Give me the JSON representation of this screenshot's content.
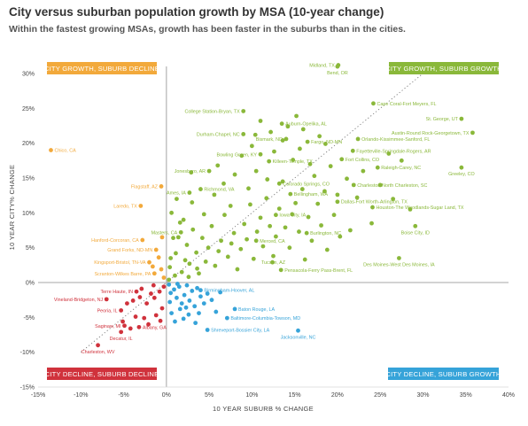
{
  "title": "City versus suburban population growth by MSA (10-year change)",
  "subtitle": "Within the fastest growing MSAs, growth has been faster in the suburbs than in the cities.",
  "colors": {
    "growth_growth": "#8ab83a",
    "growth_decline": "#f2a93b",
    "decline_decline": "#d0323c",
    "decline_growth": "#36a3d9",
    "axis": "#b9b9b9",
    "diagonal": "#777777"
  },
  "chart_data": {
    "type": "scatter",
    "xlabel": "10 YEAR SUBURB % CHANGE",
    "ylabel": "10 YEAR CITY% CHANGE",
    "xlim": [
      -15,
      40
    ],
    "ylim": [
      -15,
      30
    ],
    "x_ticks": [
      "-15%",
      "-10%",
      "-5%",
      "0%",
      "5%",
      "10%",
      "15%",
      "20%",
      "25%",
      "30%",
      "35%",
      "40%"
    ],
    "y_ticks": [
      "30%",
      "25%",
      "20%",
      "15%",
      "10%",
      "5%",
      "0%",
      "-5%",
      "-10%",
      "-15%"
    ],
    "grid": false,
    "diagonal_reference_line": true,
    "quadrant_labels": [
      {
        "text": "CITY GROWTH, SUBURB DECLINE",
        "category": "growth_decline"
      },
      {
        "text": "CITY GROWTH, SUBURB GROWTH",
        "category": "growth_growth"
      },
      {
        "text": "CITY DECLINE, SUBURB DECLINE",
        "category": "decline_decline"
      },
      {
        "text": "CITY DECLINE, SUBURB GROWTH",
        "category": "decline_growth"
      }
    ],
    "labeled_points": [
      {
        "name": "Midland, TX",
        "x": 20.1,
        "y": 31.2,
        "category": "growth_growth",
        "anchor": "left"
      },
      {
        "name": "Bend, OR",
        "x": 20.0,
        "y": 31.0,
        "category": "growth_growth",
        "anchor": "below"
      },
      {
        "name": "Cape Coral-Fort Meyers, FL",
        "x": 24.2,
        "y": 25.7,
        "category": "growth_growth",
        "anchor": "right"
      },
      {
        "name": "College Station-Bryan, TX",
        "x": 9.0,
        "y": 24.6,
        "category": "growth_growth",
        "anchor": "left"
      },
      {
        "name": "St. George, UT",
        "x": 34.5,
        "y": 23.5,
        "category": "growth_growth",
        "anchor": "left"
      },
      {
        "name": "Auburn-Opelika, AL",
        "x": 13.5,
        "y": 22.8,
        "category": "growth_growth",
        "anchor": "right"
      },
      {
        "name": "Austin-Round Rock-Georgetown, TX",
        "x": 35.8,
        "y": 21.5,
        "category": "growth_growth",
        "anchor": "left"
      },
      {
        "name": "Durham-Chapel, NC",
        "x": 9.0,
        "y": 21.3,
        "category": "growth_growth",
        "anchor": "left"
      },
      {
        "name": "Bismark, ND",
        "x": 14.0,
        "y": 20.6,
        "category": "growth_growth",
        "anchor": "left"
      },
      {
        "name": "Fargo, ND-MN",
        "x": 16.5,
        "y": 20.2,
        "category": "growth_growth",
        "anchor": "right"
      },
      {
        "name": "Orlando-Kissimmee-Sanford, FL",
        "x": 22.4,
        "y": 20.6,
        "category": "growth_growth",
        "anchor": "right"
      },
      {
        "name": "Fayetteville-Springdale-Rogers, AR",
        "x": 21.8,
        "y": 18.9,
        "category": "growth_growth",
        "anchor": "right"
      },
      {
        "name": "Bowling Green, KY",
        "x": 11.0,
        "y": 18.4,
        "category": "growth_growth",
        "anchor": "left"
      },
      {
        "name": "Killeen-Temple, TX",
        "x": 12.0,
        "y": 17.4,
        "category": "growth_growth",
        "anchor": "right"
      },
      {
        "name": "Fort Collins, CO",
        "x": 20.5,
        "y": 17.7,
        "category": "growth_growth",
        "anchor": "right"
      },
      {
        "name": "Chico, CA",
        "x": -13.5,
        "y": 19.0,
        "category": "growth_decline",
        "anchor": "right"
      },
      {
        "name": "Raleigh-Carey, NC",
        "x": 24.7,
        "y": 16.5,
        "category": "growth_growth",
        "anchor": "right"
      },
      {
        "name": "Greeley, CO",
        "x": 34.5,
        "y": 16.5,
        "category": "growth_growth",
        "anchor": "below"
      },
      {
        "name": "Jonesboro, AR",
        "x": 5.0,
        "y": 16.0,
        "category": "growth_growth",
        "anchor": "left"
      },
      {
        "name": "Colorado Springs, CO",
        "x": 13.2,
        "y": 14.2,
        "category": "growth_growth",
        "anchor": "right"
      },
      {
        "name": "Charleston-North Charleston, SC",
        "x": 21.9,
        "y": 14.0,
        "category": "growth_growth",
        "anchor": "right"
      },
      {
        "name": "Flagstaff, AZ",
        "x": -0.6,
        "y": 13.8,
        "category": "growth_decline",
        "anchor": "left"
      },
      {
        "name": "Richmond, VA",
        "x": 4.0,
        "y": 13.4,
        "category": "growth_growth",
        "anchor": "right"
      },
      {
        "name": "Ames, IA",
        "x": 2.7,
        "y": 12.9,
        "category": "growth_growth",
        "anchor": "left"
      },
      {
        "name": "Bellingham, WA",
        "x": 14.5,
        "y": 12.7,
        "category": "growth_growth",
        "anchor": "right"
      },
      {
        "name": "Dallas-Fort Worth-Arlington, TX",
        "x": 20.0,
        "y": 11.6,
        "category": "growth_growth",
        "anchor": "right"
      },
      {
        "name": "Laredo, TX",
        "x": -3.0,
        "y": 11.0,
        "category": "growth_decline",
        "anchor": "left"
      },
      {
        "name": "Houston-The Woodlands-Sugar Land, TX",
        "x": 24.1,
        "y": 10.8,
        "category": "growth_growth",
        "anchor": "right"
      },
      {
        "name": "Iowa City, IA",
        "x": 12.8,
        "y": 9.7,
        "category": "growth_growth",
        "anchor": "right"
      },
      {
        "name": "Boise City, ID",
        "x": 29.1,
        "y": 8.1,
        "category": "growth_growth",
        "anchor": "below"
      },
      {
        "name": "Masters, CA",
        "x": 1.7,
        "y": 7.2,
        "category": "growth_growth",
        "anchor": "left"
      },
      {
        "name": "Burlington, NC",
        "x": 16.4,
        "y": 7.1,
        "category": "growth_growth",
        "anchor": "right"
      },
      {
        "name": "Hanford-Corcoran, CA",
        "x": -2.8,
        "y": 6.1,
        "category": "growth_decline",
        "anchor": "left"
      },
      {
        "name": "Merced, CA",
        "x": 10.5,
        "y": 6.0,
        "category": "growth_growth",
        "anchor": "right"
      },
      {
        "name": "Grand Forks, ND-MN",
        "x": -1.2,
        "y": 4.7,
        "category": "growth_decline",
        "anchor": "left"
      },
      {
        "name": "Des Moines-West Des Moines, IA",
        "x": 27.2,
        "y": 3.5,
        "category": "growth_growth",
        "anchor": "below"
      },
      {
        "name": "Tucson, AZ",
        "x": 12.5,
        "y": 3.8,
        "category": "growth_growth",
        "anchor": "below"
      },
      {
        "name": "Kingsport-Bristol, TN-VA",
        "x": -2.0,
        "y": 2.9,
        "category": "growth_decline",
        "anchor": "left"
      },
      {
        "name": "Scranton-Wilkes Barre, PA",
        "x": -1.4,
        "y": 1.3,
        "category": "growth_decline",
        "anchor": "left"
      },
      {
        "name": "Pensacola-Ferry Pass-Brent, FL",
        "x": 13.4,
        "y": 1.8,
        "category": "growth_growth",
        "anchor": "right"
      },
      {
        "name": "Birmingham-Hoover, AL",
        "x": 4.0,
        "y": -1.1,
        "category": "decline_growth",
        "anchor": "right"
      },
      {
        "name": "Terre Haute, IN",
        "x": -3.5,
        "y": -1.3,
        "category": "decline_decline",
        "anchor": "left"
      },
      {
        "name": "Vineland-Bridgeton, NJ",
        "x": -7.0,
        "y": -2.4,
        "category": "decline_decline",
        "anchor": "left"
      },
      {
        "name": "Peoria, IL",
        "x": -5.3,
        "y": -4.0,
        "category": "decline_decline",
        "anchor": "left"
      },
      {
        "name": "Baton Rouge, LA",
        "x": 8.0,
        "y": -3.8,
        "category": "decline_growth",
        "anchor": "right"
      },
      {
        "name": "Baltimore-Columbia-Towson, MD",
        "x": 7.1,
        "y": -5.1,
        "category": "decline_growth",
        "anchor": "right"
      },
      {
        "name": "Saginaw, MI",
        "x": -4.9,
        "y": -6.2,
        "category": "decline_decline",
        "anchor": "left"
      },
      {
        "name": "Albany, GA",
        "x": -3.2,
        "y": -6.4,
        "category": "decline_decline",
        "anchor": "right"
      },
      {
        "name": "Shreveport-Bossier City, LA",
        "x": 4.8,
        "y": -6.8,
        "category": "decline_growth",
        "anchor": "right"
      },
      {
        "name": "Jacksonville, NC",
        "x": 15.4,
        "y": -6.9,
        "category": "decline_growth",
        "anchor": "below"
      },
      {
        "name": "Decatur, IL",
        "x": -5.3,
        "y": -7.1,
        "category": "decline_decline",
        "anchor": "below"
      },
      {
        "name": "Charleston, WV",
        "x": -8.0,
        "y": -9.0,
        "category": "decline_decline",
        "anchor": "below"
      }
    ],
    "unlabeled_points": {
      "growth_growth": [
        [
          0.5,
          3.5
        ],
        [
          0.3,
          0.4
        ],
        [
          1.1,
          4.2
        ],
        [
          1.4,
          6.5
        ],
        [
          1.8,
          1.5
        ],
        [
          2.2,
          3.2
        ],
        [
          2.4,
          5.4
        ],
        [
          2.7,
          2.7
        ],
        [
          3.1,
          7.6
        ],
        [
          3.5,
          4.3
        ],
        [
          3.8,
          1.3
        ],
        [
          4.2,
          6.4
        ],
        [
          4.6,
          3.0
        ],
        [
          4.9,
          5.0
        ],
        [
          5.3,
          8.1
        ],
        [
          5.7,
          2.4
        ],
        [
          6.1,
          4.5
        ],
        [
          6.4,
          6.0
        ],
        [
          6.8,
          9.7
        ],
        [
          7.2,
          3.7
        ],
        [
          7.6,
          5.6
        ],
        [
          7.9,
          7.1
        ],
        [
          8.3,
          1.9
        ],
        [
          8.7,
          4.8
        ],
        [
          9.1,
          8.4
        ],
        [
          9.4,
          6.2
        ],
        [
          9.8,
          11.2
        ],
        [
          10.2,
          3.4
        ],
        [
          10.6,
          7.3
        ],
        [
          11.0,
          9.3
        ],
        [
          11.3,
          5.2
        ],
        [
          11.7,
          12.1
        ],
        [
          12.1,
          8.1
        ],
        [
          12.4,
          2.9
        ],
        [
          12.8,
          6.6
        ],
        [
          13.2,
          10.6
        ],
        [
          13.6,
          14.5
        ],
        [
          13.9,
          7.9
        ],
        [
          14.4,
          5.0
        ],
        [
          14.7,
          9.8
        ],
        [
          15.1,
          11.4
        ],
        [
          15.5,
          7.3
        ],
        [
          15.9,
          13.4
        ],
        [
          16.2,
          3.3
        ],
        [
          16.6,
          9.4
        ],
        [
          17.0,
          6.0
        ],
        [
          17.3,
          15.3
        ],
        [
          17.7,
          11.3
        ],
        [
          18.1,
          8.2
        ],
        [
          18.5,
          13.1
        ],
        [
          18.8,
          4.7
        ],
        [
          19.2,
          16.7
        ],
        [
          19.6,
          9.7
        ],
        [
          20.0,
          12.6
        ],
        [
          20.3,
          6.6
        ],
        [
          21.1,
          14.9
        ],
        [
          21.5,
          7.5
        ],
        [
          22.3,
          12.2
        ],
        [
          23.0,
          16.0
        ],
        [
          24.0,
          8.5
        ],
        [
          25.0,
          14.0
        ],
        [
          26.5,
          12.0
        ],
        [
          27.5,
          17.5
        ],
        [
          28.5,
          10.5
        ],
        [
          26.0,
          18.5
        ],
        [
          0.6,
          10.0
        ],
        [
          1.2,
          12.0
        ],
        [
          2.0,
          9.0
        ],
        [
          3.0,
          11.5
        ],
        [
          4.4,
          9.8
        ],
        [
          5.6,
          12.6
        ],
        [
          6.7,
          14.2
        ],
        [
          7.5,
          11.0
        ],
        [
          8.0,
          15.5
        ],
        [
          9.6,
          13.5
        ],
        [
          10.5,
          16.0
        ],
        [
          11.8,
          14.8
        ],
        [
          8.8,
          18.2
        ],
        [
          10.0,
          19.6
        ],
        [
          12.6,
          18.8
        ],
        [
          13.6,
          20.4
        ],
        [
          14.8,
          17.6
        ],
        [
          15.6,
          19.2
        ],
        [
          16.8,
          17.0
        ],
        [
          14.2,
          22.4
        ],
        [
          15.2,
          23.9
        ],
        [
          16.0,
          22.0
        ],
        [
          17.9,
          21.0
        ],
        [
          18.6,
          19.9
        ],
        [
          12.2,
          21.6
        ],
        [
          11.0,
          23.2
        ],
        [
          10.4,
          21.2
        ],
        [
          0.8,
          6.4
        ],
        [
          1.6,
          8.6
        ],
        [
          2.6,
          0.8
        ],
        [
          3.6,
          2.0
        ],
        [
          0.4,
          2.2
        ],
        [
          1.0,
          1.0
        ],
        [
          2.9,
          15.8
        ],
        [
          6.0,
          16.8
        ]
      ],
      "growth_decline": [
        [
          -0.9,
          3.6
        ],
        [
          -0.6,
          1.9
        ],
        [
          -0.3,
          0.7
        ],
        [
          -1.6,
          2.3
        ],
        [
          -0.5,
          6.5
        ]
      ],
      "decline_decline": [
        [
          -0.8,
          -1.3
        ],
        [
          -1.4,
          -2.2
        ],
        [
          -2.3,
          -3.0
        ],
        [
          -3.1,
          -2.1
        ],
        [
          -0.5,
          -3.7
        ],
        [
          -1.2,
          -4.7
        ],
        [
          -2.6,
          -5.1
        ],
        [
          -3.6,
          -4.9
        ],
        [
          -4.6,
          -3.0
        ],
        [
          -0.3,
          -0.6
        ],
        [
          -1.8,
          -1.6
        ],
        [
          -2.9,
          -0.9
        ],
        [
          -3.9,
          -2.6
        ],
        [
          -5.1,
          -5.6
        ],
        [
          -0.7,
          -5.5
        ],
        [
          -1.5,
          -0.4
        ],
        [
          -2.1,
          -6.0
        ],
        [
          -4.2,
          -6.6
        ]
      ],
      "decline_growth": [
        [
          0.3,
          -0.3
        ],
        [
          0.5,
          -1.5
        ],
        [
          0.9,
          -1.0
        ],
        [
          1.2,
          -2.2
        ],
        [
          1.5,
          -0.6
        ],
        [
          1.8,
          -3.0
        ],
        [
          2.1,
          -1.8
        ],
        [
          2.4,
          -0.4
        ],
        [
          2.7,
          -2.6
        ],
        [
          3.0,
          -1.2
        ],
        [
          3.3,
          -3.4
        ],
        [
          3.6,
          -0.8
        ],
        [
          4.0,
          -2.0
        ],
        [
          4.4,
          -3.0
        ],
        [
          4.8,
          -1.6
        ],
        [
          5.3,
          -2.5
        ],
        [
          5.8,
          -4.2
        ],
        [
          6.3,
          -1.4
        ],
        [
          0.6,
          -4.4
        ],
        [
          1.0,
          -5.6
        ],
        [
          1.6,
          -3.8
        ],
        [
          2.0,
          -5.2
        ],
        [
          2.6,
          -4.6
        ],
        [
          3.4,
          -5.8
        ],
        [
          3.8,
          -4.4
        ],
        [
          0.4,
          -2.8
        ],
        [
          1.3,
          -0.2
        ],
        [
          2.3,
          -3.6
        ]
      ]
    }
  }
}
